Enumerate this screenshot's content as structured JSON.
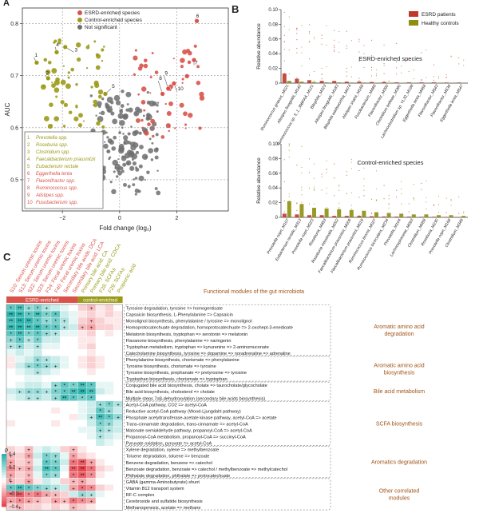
{
  "panel_letters": {
    "a": "A",
    "b": "B",
    "c": "C"
  },
  "colors": {
    "esrd": "#d9534a",
    "control": "#9b9a18",
    "ns": "#6e6e6e",
    "heat_pos": "#2bb3ad",
    "heat_neg": "#e8464f",
    "module_text": "#a05418",
    "esrd_bar": "#c0392b",
    "ctrl_bar": "#8e8e10"
  },
  "chart_data": [
    {
      "type": "scatter",
      "id": "volcano",
      "xlabel": "Fold change (log₂)",
      "ylabel": "AUC",
      "xlim": [
        -3.4,
        3.8
      ],
      "ylim": [
        0.44,
        0.83
      ],
      "xticks": [
        -2,
        0,
        2
      ],
      "yticks": [
        0.5,
        0.6,
        0.7,
        0.8
      ],
      "grid": "dashed",
      "legend": {
        "placement": "top-center",
        "entries": [
          "ESRD-enriched species",
          "Control-enriched species",
          "Not significant"
        ]
      },
      "labeled_points": [
        {
          "n": "1",
          "x": -2.9,
          "y": 0.725,
          "group": "control"
        },
        {
          "n": "2",
          "x": -2.5,
          "y": 0.695,
          "group": "control"
        },
        {
          "n": "3",
          "x": -1.9,
          "y": 0.755,
          "group": "control"
        },
        {
          "n": "4",
          "x": -2.2,
          "y": 0.745,
          "group": "control"
        },
        {
          "n": "5",
          "x": -0.5,
          "y": 0.665,
          "group": "control"
        },
        {
          "n": "6",
          "x": 2.7,
          "y": 0.805,
          "group": "esrd"
        },
        {
          "n": "7",
          "x": 2.6,
          "y": 0.73,
          "group": "esrd"
        },
        {
          "n": "8",
          "x": 1.5,
          "y": 0.665,
          "group": "esrd"
        },
        {
          "n": "9",
          "x": 1.7,
          "y": 0.675,
          "group": "esrd"
        },
        {
          "n": "10",
          "x": 1.9,
          "y": 0.685,
          "group": "esrd"
        }
      ],
      "key_list": [
        {
          "n": "1",
          "name": "Prevotella spp.",
          "group": "control"
        },
        {
          "n": "2",
          "name": "Roseburia spp.",
          "group": "control"
        },
        {
          "n": "3",
          "name": "Clostridium spp.",
          "group": "control"
        },
        {
          "n": "4",
          "name": "Faecalibacterium prausnitzii",
          "group": "control"
        },
        {
          "n": "5",
          "name": "Eubacterium rectale",
          "group": "control"
        },
        {
          "n": "6",
          "name": "Eggerthella lenta",
          "group": "esrd"
        },
        {
          "n": "7",
          "name": "Flavonifractor spp.",
          "group": "esrd"
        },
        {
          "n": "8",
          "name": "Ruminococcus spp.",
          "group": "esrd"
        },
        {
          "n": "9",
          "name": "Alistipes spp.",
          "group": "esrd"
        },
        {
          "n": "10",
          "name": "Fusobacterium spp.",
          "group": "esrd"
        }
      ]
    },
    {
      "type": "bar",
      "id": "esrd-enriched",
      "title": "ESRD-enriched species",
      "ylabel": "Relative abundance",
      "ylim": [
        0,
        0.1
      ],
      "yticks": [
        0,
        0.02,
        0.04,
        0.06,
        0.08,
        0.1
      ],
      "legend": {
        "placement": "top-right",
        "entries": [
          "ESRD patients",
          "Healthy controls"
        ]
      },
      "categories": [
        "Ruminococcus gnavus_M021",
        "Alistipes finegoldii_M142",
        "Ruminococcus sp. 5_1_39BFAA_M121",
        "Bilophila_M323",
        "Alistipes finegoldii_M183",
        "Bilophila wadsworthia_M474",
        "Alistipes shahii_M168",
        "Fusobacterium_M468",
        "Flavonifractor_M390",
        "Clostridium bolteae_M390",
        "Lachnoclostridium sp. YL32_M198",
        "Eggerthella lenta_M468",
        "Flavonifractor_M543",
        "Flavonifractor_M536",
        "Eggerthella lenta_M547"
      ],
      "series": [
        {
          "name": "ESRD patients",
          "values": [
            0.013,
            0.006,
            0.004,
            0.003,
            0.003,
            0.002,
            0.002,
            0.0015,
            0.0015,
            0.001,
            0.001,
            0.001,
            0.001,
            0.0008,
            0.0008
          ]
        },
        {
          "name": "Healthy controls",
          "values": [
            0.003,
            0.002,
            0.0015,
            0.001,
            0.001,
            0.0008,
            0.0008,
            0.0006,
            0.0005,
            0.0005,
            0.0004,
            0.0004,
            0.0004,
            0.0003,
            0.0003
          ]
        }
      ]
    },
    {
      "type": "bar",
      "id": "control-enriched",
      "title": "Control-enriched species",
      "ylabel": "Relative abundance",
      "ylim": [
        0,
        0.1
      ],
      "yticks": [
        0,
        0.02,
        0.04,
        0.06,
        0.08,
        0.1
      ],
      "categories": [
        "Prevotella copri_M107",
        "Eubacterium rectale_M313",
        "Prevotella copri_M223",
        "Roseburia_M483",
        "Roseburia intestinalis_M202",
        "Faecalibacterium prausnitzii_M009",
        "Faecalibacterium prausnitzii_M019",
        "Ruminococcus bromii_M027",
        "Ruminococcus bicirculans_M234",
        "Prevotella_M104",
        "Lachnospiraceae_M093",
        "Clostridium_M089",
        "Roseburia_M230",
        "Prevotella copri_M168",
        "Clostridium_M349"
      ],
      "series": [
        {
          "name": "ESRD patients",
          "values": [
            0.005,
            0.004,
            0.003,
            0.003,
            0.002,
            0.002,
            0.002,
            0.0015,
            0.0012,
            0.001,
            0.001,
            0.0008,
            0.0008,
            0.0006,
            0.0005
          ]
        },
        {
          "name": "Healthy controls",
          "values": [
            0.022,
            0.018,
            0.013,
            0.012,
            0.011,
            0.01,
            0.009,
            0.007,
            0.006,
            0.005,
            0.004,
            0.004,
            0.003,
            0.003,
            0.002
          ]
        }
      ]
    },
    {
      "type": "heatmap",
      "id": "module-correlation",
      "title": "Functional modules of the gut microbiota",
      "legend_title": "ρ",
      "scale": {
        "min": -0.4,
        "max": 0.4,
        "ticks": [
          0.4,
          0.2,
          0,
          -0.2,
          -0.4
        ]
      },
      "group_labels": [
        {
          "label": "ESRD-enriched",
          "span": 6,
          "color": "esrd"
        },
        {
          "label": "control-enriched",
          "span": 3,
          "color": "control"
        }
      ],
      "columns": [
        {
          "label": "S10: Serum uremic toxins",
          "color": "esrd"
        },
        {
          "label": "S13: Serum uremic toxins",
          "color": "esrd"
        },
        {
          "label": "S22: Serum uremic toxins",
          "color": "esrd"
        },
        {
          "label": "S23: Serum uremic toxins",
          "color": "esrd"
        },
        {
          "label": "F24: Fecal uremic toxins",
          "color": "esrd"
        },
        {
          "label": "F40: Fecal uremic toxins",
          "color": "esrd"
        },
        {
          "label": "Secondary bile acids: DCA",
          "color": "esrd"
        },
        {
          "label": "Secondary bile acid: LCA",
          "color": "esrd"
        },
        {
          "label": "Primary bile acid: CA",
          "color": "control"
        },
        {
          "label": "Primary bile acid: CDCA",
          "color": "control"
        },
        {
          "label": "F28: SCFAs",
          "color": "control"
        },
        {
          "label": "F29: SCFAs",
          "color": "control"
        },
        {
          "label": "Propionic acid",
          "color": "control"
        }
      ],
      "rows": [
        "Tyrosine degradation, tyrosine => homogentisate",
        "Capsaicin biosynthesis, L-Phenylalanine => Capsaicin",
        "Monolignol biosynthesis, phenylalanine / tyrosine => monolignol",
        "Homoprotocatechuate degradation, homoprotocatechuate => 2-oxohept-3-enedioate",
        "Melatonin biosynthesis, tryptophan => serotonin => melatonin",
        "Flavanone biosynthesis, phenylalanine => naringenin",
        "Tryptophan metabolism, tryptophan => kynurenine => 2-aminomuconate",
        "Catecholamine biosynthesis, tyrosine => dopamine => noradrenaline => adrenaline",
        "Phenylalanine biosynthesis, chorismate => phenylalanine",
        "Tyrosine biosynthesis, chorismate => tyrosine",
        "Tyrosine biosynthesis, prephanate => pretyrosine => tyrosine",
        "Tryptophan biosynthesis, chorismate => tryptophan",
        "Conjugated bile acid biosynthesis, cholate => taurocholate/glycocholate",
        "Bile acid biosynthesis, cholesterol => cholate",
        "Multiple steps 7αβ-dehydroxylation (secondary bile acids biosynthesis)",
        "Acetyl-CoA pathway, CO2 => acetyl-CoA",
        "Reductive acetyl-CoA pathway (Wood-Ljungdahl pathway)",
        "Phosphate acetyltransferase-acetate kinase pathway, acetyl-CoA => acetate",
        "Trans-cinnamate degradation, trans-cinnamate => acetyl-CoA",
        "Malonate semialdehyde pathway, propanoyl-CoA => acetyl-CoA",
        "Propanoyl-CoA metabolism, propanoyl-CoA => succinyl-CoA",
        "Pyruvate oxidation, pyruvate => acetyl-CoA",
        "Xylene degradation, xylene => methylbenzoate",
        "Toluene degradation, toluene => benzoate",
        "Benzene degradation, benzene => catechol",
        "Benzoate degradation, benzoate => catechol / methylbenzoate => methylcatechol",
        "Phthalate degradation, phthalate => protocatechuate",
        "GABA (gamma-Aminobutyrate) shunt",
        "Vitamin B12 transport system",
        "RF-C complex",
        "Cerebroside and sulfatide biosynthesis",
        "Methanogenesis, acetate => methane"
      ],
      "modules": [
        {
          "label": "Aromatic amino acid degradation",
          "lines": [
            "Aromatic amino acid",
            "degradation"
          ],
          "start": 0,
          "end": 7
        },
        {
          "label": "Aromatic amino acid biosynthesis",
          "lines": [
            "Aromatic amino acid",
            "biosynthesis"
          ],
          "start": 8,
          "end": 11
        },
        {
          "label": "Bile acid metabolism",
          "lines": [
            "Bile acid metabolism"
          ],
          "start": 12,
          "end": 14
        },
        {
          "label": "SCFA biosynthesis",
          "lines": [
            "SCFA biosynthesis"
          ],
          "start": 15,
          "end": 21
        },
        {
          "label": "Aromatics degradation",
          "lines": [
            "Aromatics degradation"
          ],
          "start": 22,
          "end": 26
        },
        {
          "label": "Other correlated modules",
          "lines": [
            "Other correlated",
            "modules"
          ],
          "start": 27,
          "end": 31
        }
      ],
      "values": [
        [
          0.3,
          0.35,
          0.2,
          0.25,
          0.15,
          0.1,
          0.05,
          0,
          -0.1,
          -0.15,
          -0.05,
          -0.1,
          0
        ],
        [
          0.4,
          0.38,
          0.3,
          0.35,
          0.25,
          0.3,
          0.1,
          0.05,
          -0.05,
          -0.1,
          -0.05,
          -0.1,
          -0.05
        ],
        [
          0.35,
          0.4,
          0.38,
          0.3,
          0.2,
          0.25,
          0.15,
          0.05,
          -0.1,
          -0.15,
          -0.1,
          -0.05,
          -0.05
        ],
        [
          0.38,
          0.4,
          0.35,
          0.38,
          0.3,
          0.3,
          0.15,
          0.1,
          -0.15,
          -0.2,
          -0.1,
          -0.1,
          -0.05
        ],
        [
          0.3,
          0.35,
          0.25,
          0.3,
          0.2,
          0.15,
          0.05,
          0.05,
          -0.05,
          -0.1,
          0,
          -0.05,
          0
        ],
        [
          0.2,
          0.3,
          0.15,
          0.25,
          0.1,
          0.1,
          0,
          0,
          -0.05,
          -0.05,
          0,
          0,
          0
        ],
        [
          0.15,
          0.2,
          0.1,
          0.15,
          0.05,
          0.05,
          0,
          0,
          -0.05,
          -0.1,
          0,
          0,
          0
        ],
        [
          0.05,
          0.1,
          0.05,
          0.1,
          0,
          0,
          0,
          0,
          0,
          -0.05,
          0,
          0,
          0
        ],
        [
          -0.05,
          0.05,
          0.1,
          0.2,
          0.15,
          0.1,
          0.05,
          0,
          -0.05,
          -0.1,
          -0.05,
          0,
          0
        ],
        [
          -0.05,
          0.1,
          0.2,
          0.25,
          0.2,
          0.15,
          0.05,
          0,
          -0.05,
          -0.1,
          -0.05,
          0,
          0
        ],
        [
          0,
          0.05,
          0.1,
          0.15,
          0.1,
          0.05,
          0,
          0,
          0,
          -0.05,
          0,
          0,
          0
        ],
        [
          0,
          0,
          0.05,
          0.05,
          0,
          0,
          0,
          0,
          0,
          0,
          0,
          0,
          0
        ],
        [
          0,
          0.05,
          0.1,
          0.1,
          0.05,
          0.2,
          0.3,
          0.25,
          0.35,
          0.3,
          0.05,
          0.05,
          0
        ],
        [
          0.1,
          0.15,
          0.2,
          0.2,
          0.15,
          0.25,
          0.3,
          0.35,
          0.4,
          0.35,
          0.1,
          0.05,
          0
        ],
        [
          0.05,
          0.1,
          0.15,
          0.15,
          0.1,
          0.2,
          0.35,
          0.3,
          0.25,
          0.3,
          0,
          0,
          0
        ],
        [
          0,
          0,
          0,
          0,
          0,
          0,
          0,
          0,
          0.05,
          0.1,
          0.2,
          0.25,
          0.15
        ],
        [
          0,
          0,
          0,
          0,
          0,
          -0.05,
          0,
          0,
          0.05,
          0.1,
          0.3,
          0.2,
          0.1
        ],
        [
          0,
          0,
          0,
          0,
          0,
          0,
          0,
          -0.05,
          0.05,
          0.15,
          0.35,
          0.3,
          0.2
        ],
        [
          -0.05,
          0,
          0,
          0,
          0,
          -0.05,
          0,
          0,
          0,
          0.1,
          0.25,
          0.2,
          0.1
        ],
        [
          0,
          0,
          0,
          0,
          0,
          0,
          0,
          0,
          0.05,
          0.05,
          0.2,
          0.15,
          0.1
        ],
        [
          0,
          0,
          0,
          0,
          0,
          0,
          0,
          0,
          0,
          0.05,
          0.15,
          0.1,
          0.05
        ],
        [
          0,
          0,
          0,
          0,
          0,
          0,
          0,
          0,
          0,
          0,
          0.1,
          0.05,
          0
        ],
        [
          -0.1,
          -0.05,
          -0.15,
          0.05,
          0.1,
          0.05,
          -0.1,
          -0.15,
          -0.05,
          0,
          0,
          0,
          0
        ],
        [
          -0.15,
          -0.1,
          -0.2,
          0.1,
          0.25,
          0.2,
          0.05,
          -0.2,
          -0.1,
          -0.05,
          0,
          0,
          0
        ],
        [
          -0.2,
          -0.1,
          -0.15,
          0.05,
          0.3,
          0.25,
          0.1,
          -0.3,
          -0.35,
          -0.2,
          -0.05,
          0,
          0
        ],
        [
          -0.25,
          -0.15,
          -0.2,
          0.1,
          0.35,
          0.3,
          0.05,
          -0.35,
          -0.4,
          -0.3,
          -0.1,
          -0.05,
          0
        ],
        [
          -0.2,
          -0.1,
          -0.15,
          0.05,
          0.25,
          0.2,
          0,
          -0.3,
          -0.35,
          -0.25,
          -0.05,
          0,
          0
        ],
        [
          -0.15,
          -0.1,
          -0.2,
          -0.05,
          0.1,
          0.05,
          -0.1,
          -0.15,
          -0.2,
          -0.1,
          0,
          0,
          0
        ],
        [
          0.3,
          0.35,
          0.3,
          0.25,
          0.2,
          0.15,
          0.1,
          -0.2,
          -0.3,
          -0.25,
          -0.1,
          -0.05,
          0
        ],
        [
          -0.3,
          -0.35,
          -0.25,
          -0.3,
          -0.2,
          -0.15,
          -0.1,
          0.1,
          0.2,
          0.15,
          0.05,
          0,
          0
        ],
        [
          -0.2,
          -0.25,
          -0.2,
          -0.15,
          -0.1,
          -0.2,
          -0.15,
          -0.3,
          -0.25,
          -0.2,
          0,
          0,
          0
        ],
        [
          -0.1,
          -0.15,
          -0.1,
          -0.1,
          -0.05,
          -0.1,
          -0.05,
          -0.15,
          -0.1,
          -0.05,
          0,
          0,
          0
        ]
      ]
    }
  ]
}
